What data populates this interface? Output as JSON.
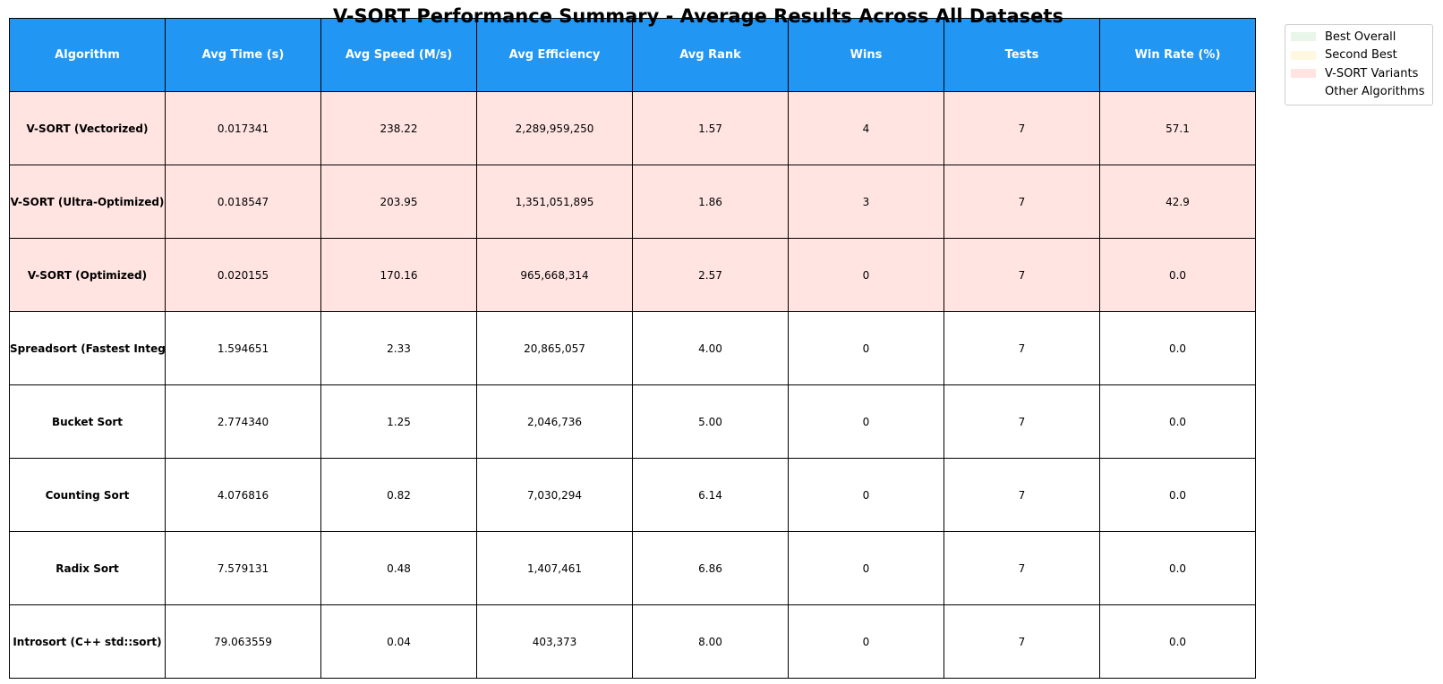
{
  "chart_data": {
    "type": "table",
    "title": "V-SORT Performance Summary - Average Results Across All Datasets",
    "header_color": "#2196F3",
    "columns": [
      "Algorithm",
      "Avg Time (s)",
      "Avg Speed (M/s)",
      "Avg Efficiency",
      "Avg Rank",
      "Wins",
      "Tests",
      "Win Rate (%)"
    ],
    "rows": [
      {
        "algorithm": "V-SORT (Vectorized)",
        "avg_time": "0.017341",
        "avg_speed": "238.22",
        "avg_efficiency": "2,289,959,250",
        "avg_rank": "1.57",
        "wins": "4",
        "tests": "7",
        "win_rate": "57.1",
        "category": "vsort"
      },
      {
        "algorithm": "V-SORT (Ultra-Optimized)",
        "avg_time": "0.018547",
        "avg_speed": "203.95",
        "avg_efficiency": "1,351,051,895",
        "avg_rank": "1.86",
        "wins": "3",
        "tests": "7",
        "win_rate": "42.9",
        "category": "vsort"
      },
      {
        "algorithm": "V-SORT (Optimized)",
        "avg_time": "0.020155",
        "avg_speed": "170.16",
        "avg_efficiency": "965,668,314",
        "avg_rank": "2.57",
        "wins": "0",
        "tests": "7",
        "win_rate": "0.0",
        "category": "vsort"
      },
      {
        "algorithm": "Spreadsort (Fastest Intege",
        "avg_time": "1.594651",
        "avg_speed": "2.33",
        "avg_efficiency": "20,865,057",
        "avg_rank": "4.00",
        "wins": "0",
        "tests": "7",
        "win_rate": "0.0",
        "category": "other"
      },
      {
        "algorithm": "Bucket Sort",
        "avg_time": "2.774340",
        "avg_speed": "1.25",
        "avg_efficiency": "2,046,736",
        "avg_rank": "5.00",
        "wins": "0",
        "tests": "7",
        "win_rate": "0.0",
        "category": "other"
      },
      {
        "algorithm": "Counting Sort",
        "avg_time": "4.076816",
        "avg_speed": "0.82",
        "avg_efficiency": "7,030,294",
        "avg_rank": "6.14",
        "wins": "0",
        "tests": "7",
        "win_rate": "0.0",
        "category": "other"
      },
      {
        "algorithm": "Radix Sort",
        "avg_time": "7.579131",
        "avg_speed": "0.48",
        "avg_efficiency": "1,407,461",
        "avg_rank": "6.86",
        "wins": "0",
        "tests": "7",
        "win_rate": "0.0",
        "category": "other"
      },
      {
        "algorithm": "Introsort (C++ std::sort)",
        "avg_time": "79.063559",
        "avg_speed": "0.04",
        "avg_efficiency": "403,373",
        "avg_rank": "8.00",
        "wins": "0",
        "tests": "7",
        "win_rate": "0.0",
        "category": "other"
      }
    ],
    "legend_placement": "top-right, outside table",
    "legend": [
      {
        "label": "Best Overall",
        "color": "#E8F5E9",
        "category": "best"
      },
      {
        "label": "Second Best",
        "color": "#FFF8E1",
        "category": "second"
      },
      {
        "label": "V-SORT Variants",
        "color": "#FFE4E1",
        "category": "vsort"
      },
      {
        "label": "Other Algorithms",
        "color": "#FFFFFF",
        "category": "other"
      }
    ]
  }
}
